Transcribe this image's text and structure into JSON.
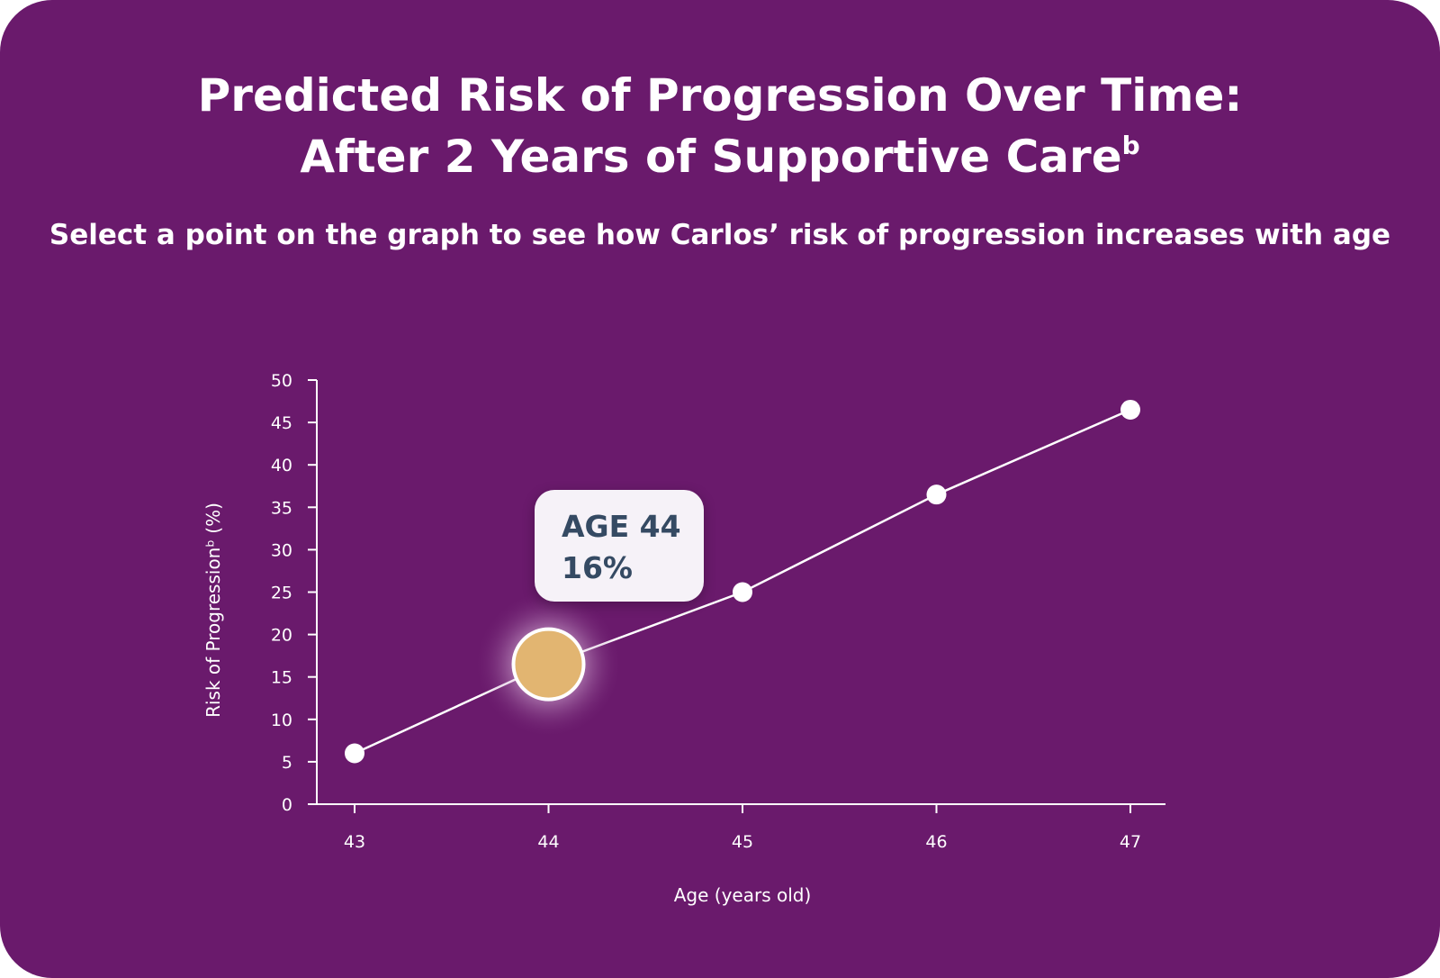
{
  "header": {
    "title_line1": "Predicted Risk of Progression Over Time:",
    "title_line2": "After 2 Years of Supportive Care",
    "title_sup": "b",
    "subtitle": "Select a point on the graph to see how Carlos’ risk of progression increases with age"
  },
  "tooltip": {
    "age_label": "AGE 44",
    "risk_label": "16%"
  },
  "colors": {
    "background": "#6a1a6c",
    "point": "#ffffff",
    "selected_point": "#e2b571",
    "tooltip_bg": "#f6f2f8",
    "tooltip_text": "#354a63"
  },
  "chart_data": {
    "type": "line",
    "xlabel": "Age (years old)",
    "ylabel": "Risk of Progressionᵇ (%)",
    "x": [
      43,
      44,
      45,
      46,
      47
    ],
    "x_tick_labels": [
      "43",
      "44",
      "45",
      "46",
      "47"
    ],
    "y_ticks": [
      0,
      5,
      10,
      15,
      20,
      25,
      30,
      35,
      40,
      45,
      50
    ],
    "ylim": [
      0,
      50
    ],
    "series": [
      {
        "values": [
          6,
          16.5,
          25,
          36.5,
          46.5
        ]
      }
    ],
    "selected_x": 44,
    "grid": false,
    "legend": "none"
  }
}
